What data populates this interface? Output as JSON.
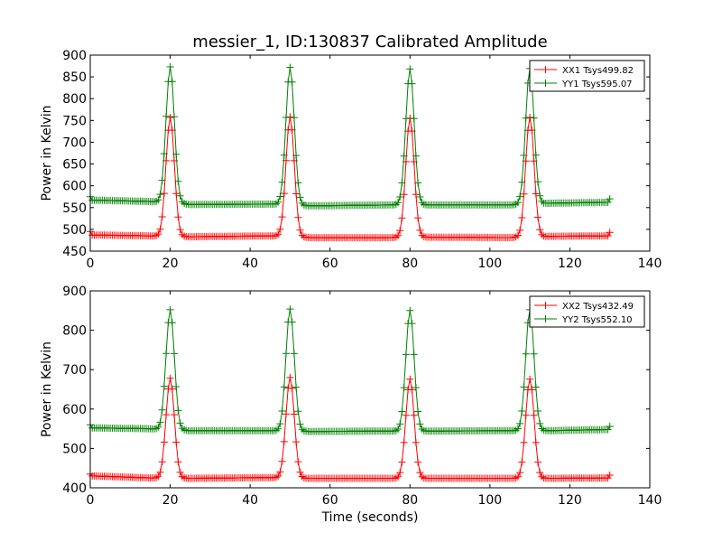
{
  "chart_data": {
    "title": "messier_1, ID:130837 Calibrated Amplitude",
    "xlabel": "Time (seconds)",
    "plots": [
      {
        "type": "line",
        "ylabel": "Power in Kelvin",
        "xlim": [
          0,
          140
        ],
        "ylim": [
          450,
          900
        ],
        "xticks": [
          0,
          20,
          40,
          60,
          80,
          100,
          120,
          140
        ],
        "yticks": [
          450,
          500,
          550,
          600,
          650,
          700,
          750,
          800,
          850,
          900
        ],
        "grid": false,
        "legend": "top-right",
        "marker": "+",
        "series": [
          {
            "name": "XX1 Tsys499.82",
            "color": "#ff0000",
            "x": [
              0,
              20,
              50,
              80,
              110,
              130
            ],
            "y": [
              495,
              757,
              758,
              755,
              757,
              493
            ],
            "baseline": [
              [
                1,
                487
              ],
              [
                15,
                485
              ],
              [
                25,
                483
              ],
              [
                45,
                485
              ],
              [
                55,
                481
              ],
              [
                75,
                481
              ],
              [
                85,
                482
              ],
              [
                105,
                481
              ],
              [
                115,
                484
              ],
              [
                129,
                485
              ]
            ]
          },
          {
            "name": "YY1 Tsys595.07",
            "color": "#008000",
            "x": [
              0,
              20,
              50,
              80,
              110,
              130
            ],
            "y": [
              575,
              873,
              872,
              868,
              869,
              570
            ],
            "baseline": [
              [
                1,
                567
              ],
              [
                15,
                564
              ],
              [
                25,
                557
              ],
              [
                45,
                558
              ],
              [
                55,
                554
              ],
              [
                75,
                556
              ],
              [
                85,
                556
              ],
              [
                105,
                556
              ],
              [
                115,
                560
              ],
              [
                129,
                562
              ]
            ]
          }
        ]
      },
      {
        "type": "line",
        "ylabel": "Power in Kelvin",
        "xlim": [
          0,
          140
        ],
        "ylim": [
          400,
          900
        ],
        "xticks": [
          0,
          20,
          40,
          60,
          80,
          100,
          120,
          140
        ],
        "yticks": [
          400,
          500,
          600,
          700,
          800,
          900
        ],
        "grid": false,
        "legend": "top-right",
        "marker": "+",
        "series": [
          {
            "name": "XX2 Tsys432.49",
            "color": "#ff0000",
            "x": [
              0,
              20,
              50,
              80,
              110,
              130
            ],
            "y": [
              435,
              678,
              680,
              676,
              676,
              432
            ],
            "baseline": [
              [
                1,
                430
              ],
              [
                15,
                425
              ],
              [
                25,
                424
              ],
              [
                45,
                426
              ],
              [
                55,
                424
              ],
              [
                75,
                424
              ],
              [
                85,
                424
              ],
              [
                105,
                424
              ],
              [
                115,
                424
              ],
              [
                129,
                425
              ]
            ]
          },
          {
            "name": "YY2 Tsys552.10",
            "color": "#008000",
            "x": [
              0,
              20,
              50,
              80,
              110,
              130
            ],
            "y": [
              560,
              852,
              854,
              850,
              852,
              556
            ],
            "baseline": [
              [
                1,
                552
              ],
              [
                15,
                550
              ],
              [
                25,
                545
              ],
              [
                45,
                545
              ],
              [
                55,
                543
              ],
              [
                75,
                544
              ],
              [
                85,
                544
              ],
              [
                105,
                545
              ],
              [
                115,
                545
              ],
              [
                129,
                548
              ]
            ]
          }
        ]
      }
    ]
  }
}
